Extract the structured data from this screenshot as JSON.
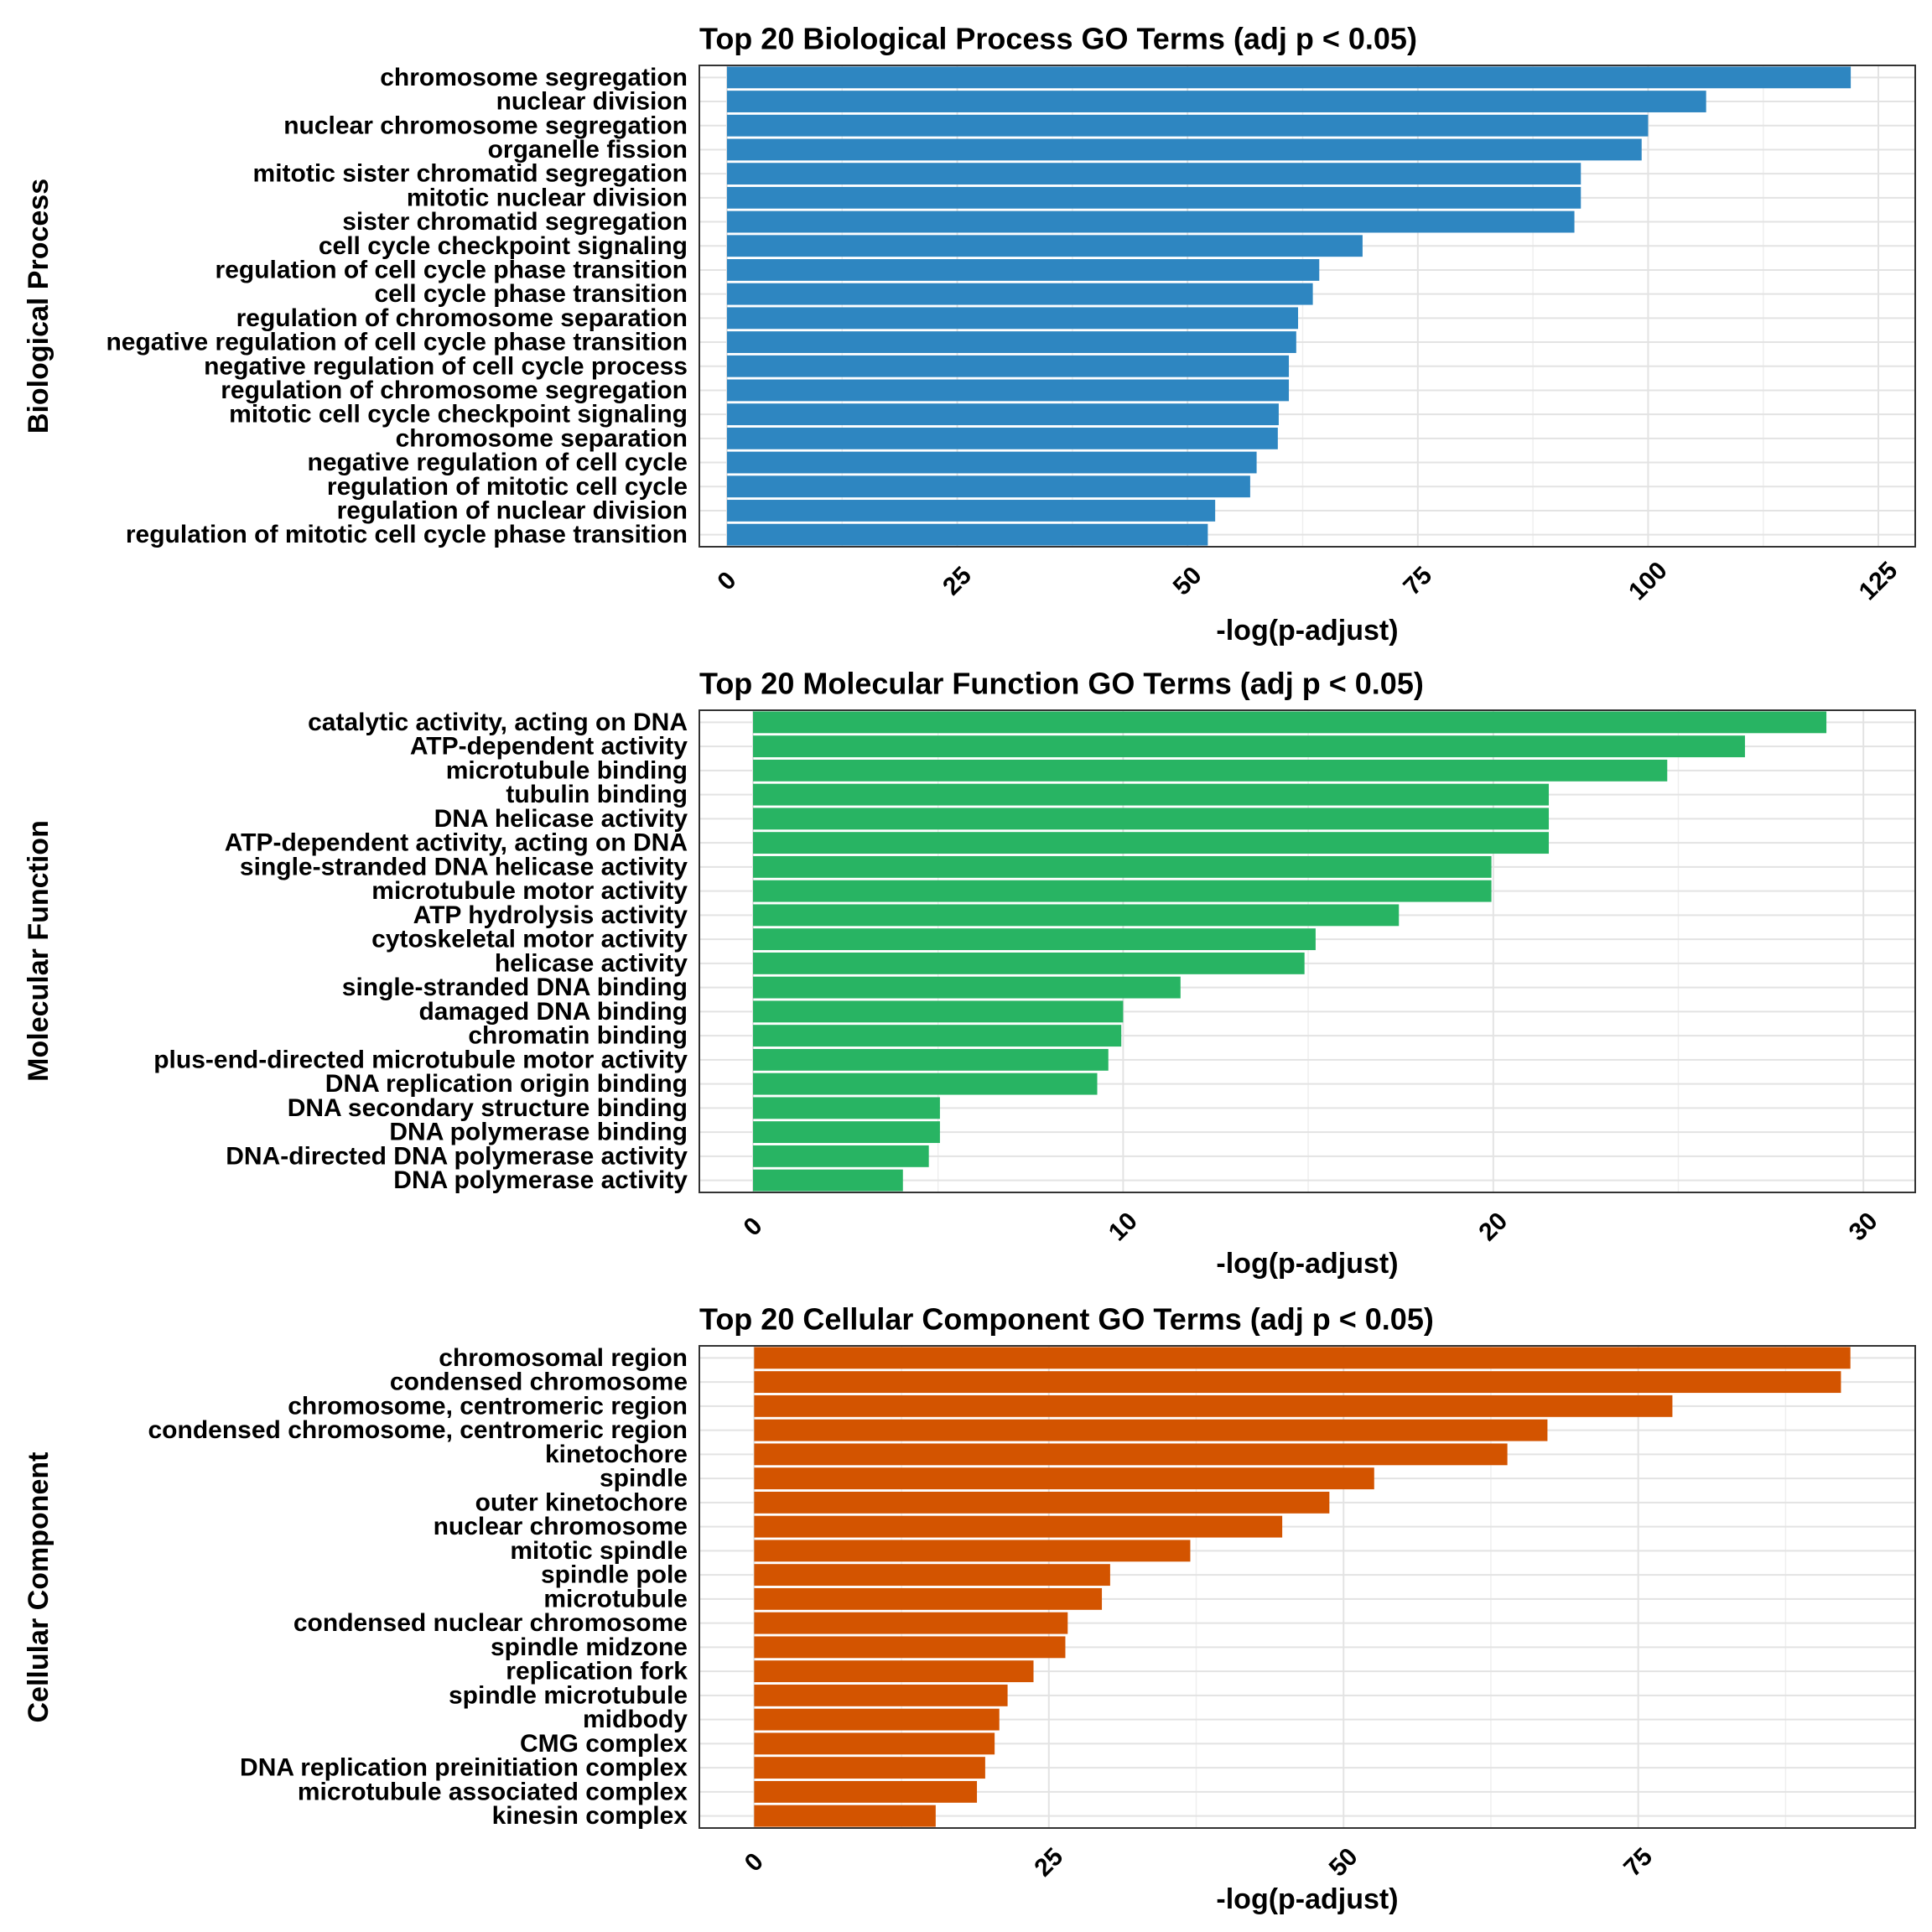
{
  "chart_data": [
    {
      "type": "bar",
      "orientation": "horizontal",
      "title": "Top 20 Biological Process GO Terms (adj p < 0.05)",
      "ylabel": "Biological Process",
      "xlabel": "-log(p-adjust)",
      "color": "#2e86c1",
      "xlim": [
        -3,
        129
      ],
      "xticks": [
        0,
        25,
        50,
        75,
        100,
        125
      ],
      "grid": true,
      "categories": [
        "chromosome segregation",
        "nuclear division",
        "nuclear chromosome segregation",
        "organelle fission",
        "mitotic sister chromatid segregation",
        "mitotic nuclear division",
        "sister chromatid segregation",
        "cell cycle checkpoint signaling",
        "regulation of cell cycle phase transition",
        "cell cycle phase transition",
        "regulation of chromosome separation",
        "negative regulation of cell cycle phase transition",
        "negative regulation of cell cycle process",
        "regulation of chromosome segregation",
        "mitotic cell cycle checkpoint signaling",
        "chromosome separation",
        "negative regulation of cell cycle",
        "regulation of mitotic cell cycle",
        "regulation of nuclear division",
        "regulation of mitotic cell cycle phase transition"
      ],
      "values": [
        122,
        106.3,
        100,
        99.3,
        92.7,
        92.7,
        92,
        69,
        64.3,
        63.6,
        62,
        61.8,
        61,
        61,
        59.9,
        59.8,
        57.5,
        56.8,
        53,
        52.2
      ]
    },
    {
      "type": "bar",
      "orientation": "horizontal",
      "title": "Top 20 Molecular Function GO Terms (adj p < 0.05)",
      "ylabel": "Molecular Function",
      "xlabel": "-log(p-adjust)",
      "color": "#28b463",
      "xlim": [
        -1.45,
        31.4
      ],
      "xticks": [
        0,
        10,
        20,
        30
      ],
      "grid": true,
      "categories": [
        "catalytic activity, acting on DNA",
        "ATP-dependent activity",
        "microtubule binding",
        "tubulin binding",
        "DNA helicase activity",
        "ATP-dependent activity, acting on DNA",
        "single-stranded DNA helicase activity",
        "microtubule motor activity",
        "ATP hydrolysis activity",
        "cytoskeletal motor activity",
        "helicase activity",
        "single-stranded DNA binding",
        "damaged DNA binding",
        "chromatin binding",
        "plus-end-directed microtubule motor activity",
        "DNA replication origin binding",
        "DNA secondary structure binding",
        "DNA polymerase binding",
        "DNA-directed DNA polymerase activity",
        "DNA polymerase activity"
      ],
      "values": [
        29,
        26.8,
        24.7,
        21.5,
        21.5,
        21.5,
        19.95,
        19.95,
        17.45,
        15.2,
        14.9,
        11.55,
        10.0,
        9.95,
        9.6,
        9.3,
        5.05,
        5.05,
        4.75,
        4.05
      ]
    },
    {
      "type": "bar",
      "orientation": "horizontal",
      "title": "Top 20 Cellular Component GO Terms (adj p < 0.05)",
      "ylabel": "Cellular Component",
      "xlabel": "-log(p-adjust)",
      "color": "#d35400",
      "xlim": [
        -4.65,
        98.5
      ],
      "xticks": [
        0,
        25,
        50,
        75
      ],
      "grid": true,
      "categories": [
        "chromosomal region",
        "condensed chromosome",
        "chromosome, centromeric region",
        "condensed chromosome, centromeric region",
        "kinetochore",
        "spindle",
        "outer kinetochore",
        "nuclear chromosome",
        "mitotic spindle",
        "spindle pole",
        "microtubule",
        "condensed nuclear chromosome",
        "spindle midzone",
        "replication fork",
        "spindle microtubule",
        "midbody",
        "CMG complex",
        "DNA replication preinitiation complex",
        "microtubule associated complex",
        "kinesin complex"
      ],
      "values": [
        93,
        92.2,
        77.9,
        67.3,
        63.9,
        52.6,
        48.8,
        44.8,
        37,
        30.2,
        29.5,
        26.6,
        26.4,
        23.7,
        21.5,
        20.8,
        20.4,
        19.6,
        18.9,
        15.4
      ]
    }
  ]
}
